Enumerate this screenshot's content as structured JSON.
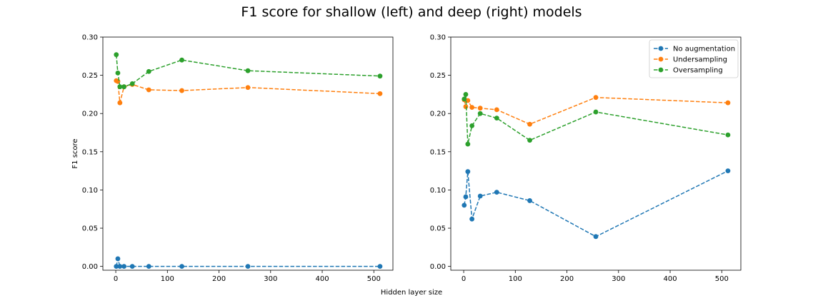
{
  "figure": {
    "title": "F1 score for shallow (left) and deep (right) models",
    "xlabel": "Hidden layer size"
  },
  "colors": {
    "no_augmentation": "#1f77b4",
    "undersampling": "#ff7f0e",
    "oversampling": "#2ca02c"
  },
  "chart_data": [
    {
      "type": "line",
      "title": "",
      "xlabel": "",
      "ylabel": "F1 score",
      "xlim": [
        -25,
        537
      ],
      "ylim": [
        -0.005,
        0.3
      ],
      "xticks": [
        0,
        100,
        200,
        300,
        400,
        500
      ],
      "yticks": [
        0.0,
        0.05,
        0.1,
        0.15,
        0.2,
        0.25,
        0.3
      ],
      "legend": null,
      "line_style": "dashed",
      "series": [
        {
          "key": "no_augmentation",
          "x": [
            1,
            4,
            8,
            16,
            32,
            64,
            128,
            256,
            512
          ],
          "y": [
            0.0,
            0.01,
            0.0,
            0.0,
            0.0,
            0.0,
            0.0,
            0.0,
            0.0
          ]
        },
        {
          "key": "undersampling",
          "x": [
            1,
            4,
            8,
            16,
            32,
            64,
            128,
            256,
            512
          ],
          "y": [
            0.243,
            0.242,
            0.214,
            0.235,
            0.238,
            0.231,
            0.23,
            0.234,
            0.226
          ]
        },
        {
          "key": "oversampling",
          "x": [
            1,
            4,
            8,
            16,
            32,
            64,
            128,
            256,
            512
          ],
          "y": [
            0.277,
            0.253,
            0.235,
            0.235,
            0.239,
            0.255,
            0.27,
            0.256,
            0.249
          ]
        }
      ]
    },
    {
      "type": "line",
      "title": "",
      "xlabel": "",
      "ylabel": "",
      "xlim": [
        -25,
        537
      ],
      "ylim": [
        -0.005,
        0.3
      ],
      "xticks": [
        0,
        100,
        200,
        300,
        400,
        500
      ],
      "yticks": [
        0.0,
        0.05,
        0.1,
        0.15,
        0.2,
        0.25,
        0.3
      ],
      "legend": "top-right",
      "line_style": "dashed",
      "series": [
        {
          "key": "no_augmentation",
          "name": "No augmentation",
          "x": [
            1,
            4,
            8,
            16,
            32,
            64,
            128,
            256,
            512
          ],
          "y": [
            0.08,
            0.091,
            0.124,
            0.062,
            0.092,
            0.097,
            0.086,
            0.039,
            0.125
          ]
        },
        {
          "key": "undersampling",
          "name": "Undersampling",
          "x": [
            1,
            4,
            8,
            16,
            32,
            64,
            128,
            256,
            512
          ],
          "y": [
            0.218,
            0.209,
            0.217,
            0.208,
            0.207,
            0.205,
            0.186,
            0.221,
            0.214
          ]
        },
        {
          "key": "oversampling",
          "name": "Oversampling",
          "x": [
            1,
            4,
            8,
            16,
            32,
            64,
            128,
            256,
            512
          ],
          "y": [
            0.219,
            0.225,
            0.16,
            0.184,
            0.2,
            0.194,
            0.165,
            0.202,
            0.172
          ]
        }
      ]
    }
  ]
}
